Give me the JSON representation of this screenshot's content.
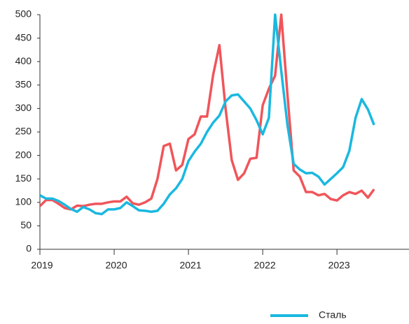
{
  "chart_data": {
    "type": "line",
    "x": [
      2019,
      2019.083,
      2019.167,
      2019.25,
      2019.333,
      2019.417,
      2019.5,
      2019.583,
      2019.667,
      2019.75,
      2019.833,
      2019.917,
      2020,
      2020.083,
      2020.167,
      2020.25,
      2020.333,
      2020.417,
      2020.5,
      2020.583,
      2020.667,
      2020.75,
      2020.833,
      2020.917,
      2021,
      2021.083,
      2021.167,
      2021.25,
      2021.333,
      2021.417,
      2021.5,
      2021.583,
      2021.667,
      2021.75,
      2021.833,
      2021.917,
      2022,
      2022.083,
      2022.167,
      2022.25,
      2022.333,
      2022.417,
      2022.5,
      2022.583,
      2022.667,
      2022.75,
      2022.833,
      2022.917,
      2023,
      2023.083,
      2023.167,
      2023.25,
      2023.333,
      2023.417,
      2023.5
    ],
    "series": [
      {
        "name": "Сталь",
        "color": "#1ab8e0",
        "values": [
          115,
          108,
          108,
          103,
          95,
          86,
          80,
          90,
          85,
          77,
          75,
          85,
          85,
          88,
          100,
          92,
          83,
          82,
          80,
          82,
          97,
          117,
          130,
          150,
          188,
          208,
          225,
          250,
          270,
          285,
          315,
          328,
          330,
          315,
          300,
          275,
          245,
          280,
          500,
          380,
          265,
          182,
          170,
          162,
          163,
          155,
          138,
          150,
          162,
          175,
          210,
          280,
          320,
          298,
          265
        ]
      },
      {
        "color": "#f0555a",
        "values": [
          92,
          105,
          105,
          97,
          88,
          85,
          93,
          92,
          95,
          97,
          97,
          100,
          102,
          102,
          112,
          98,
          95,
          100,
          108,
          150,
          220,
          225,
          168,
          180,
          235,
          245,
          283,
          283,
          372,
          435,
          300,
          190,
          148,
          162,
          193,
          195,
          307,
          342,
          370,
          500,
          330,
          168,
          155,
          122,
          122,
          115,
          118,
          107,
          104,
          115,
          122,
          118,
          125,
          110,
          128
        ]
      }
    ],
    "xlim": [
      2019,
      2023.97
    ],
    "xticks": [
      2019,
      2020,
      2021,
      2022,
      2023
    ],
    "ylim": [
      0,
      500
    ],
    "yticks": [
      0,
      50,
      100,
      150,
      200,
      250,
      300,
      350,
      400,
      450,
      500
    ],
    "legend": "bottom"
  }
}
